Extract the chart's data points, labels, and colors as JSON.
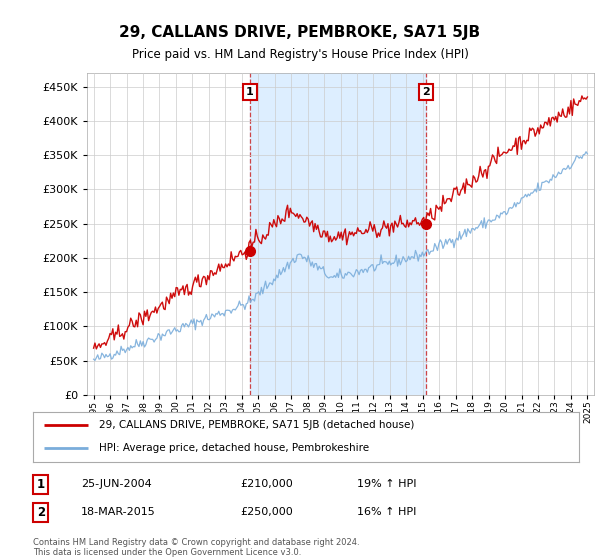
{
  "title": "29, CALLANS DRIVE, PEMBROKE, SA71 5JB",
  "subtitle": "Price paid vs. HM Land Registry's House Price Index (HPI)",
  "legend_line1": "29, CALLANS DRIVE, PEMBROKE, SA71 5JB (detached house)",
  "legend_line2": "HPI: Average price, detached house, Pembrokeshire",
  "sale1_label": "1",
  "sale1_date": "25-JUN-2004",
  "sale1_price": "£210,000",
  "sale1_hpi": "19% ↑ HPI",
  "sale1_year": 2004.49,
  "sale1_value": 210000,
  "sale2_label": "2",
  "sale2_date": "18-MAR-2015",
  "sale2_price": "£250,000",
  "sale2_hpi": "16% ↑ HPI",
  "sale2_year": 2015.21,
  "sale2_value": 250000,
  "red_line_color": "#cc0000",
  "blue_line_color": "#7aaddb",
  "shade_color": "#ddeeff",
  "dashed_line_color": "#cc3333",
  "background_color": "#ffffff",
  "grid_color": "#cccccc",
  "ylim_min": 0,
  "ylim_max": 470000,
  "yticks": [
    0,
    50000,
    100000,
    150000,
    200000,
    250000,
    300000,
    350000,
    400000,
    450000
  ],
  "footer_text": "Contains HM Land Registry data © Crown copyright and database right 2024.\nThis data is licensed under the Open Government Licence v3.0.",
  "year_start": 1995,
  "year_end": 2025
}
